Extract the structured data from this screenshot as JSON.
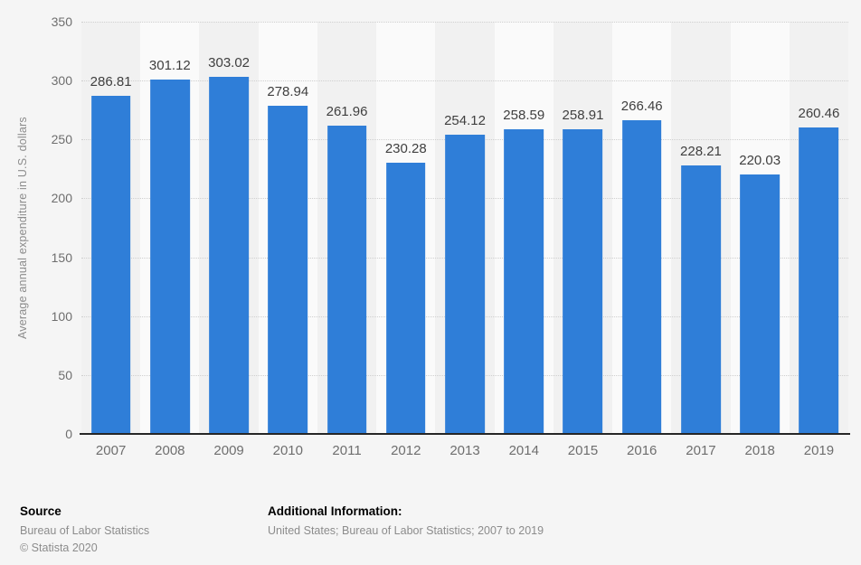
{
  "chart_data": {
    "type": "bar",
    "categories": [
      "2007",
      "2008",
      "2009",
      "2010",
      "2011",
      "2012",
      "2013",
      "2014",
      "2015",
      "2016",
      "2017",
      "2018",
      "2019"
    ],
    "values": [
      286.81,
      301.12,
      303.02,
      278.94,
      261.96,
      230.28,
      254.12,
      258.59,
      258.91,
      266.46,
      228.21,
      220.03,
      260.46
    ],
    "title": "",
    "xlabel": "",
    "ylabel": "Average annual expenditure in U.S. dollars",
    "ylim": [
      0,
      350
    ],
    "ytick_step": 50,
    "grid": "horizontal-dotted",
    "legend": "none",
    "value_labels_shown": true
  },
  "colors": {
    "page_bg": "#f5f5f5",
    "band_even": "#f1f1f1",
    "band_odd": "#fafafa",
    "bar": "#2f7ed8",
    "gridline": "#cfcfcf",
    "axis_line": "#262626",
    "value_label": "#3f3f3f",
    "tick_label": "#6e6e6e",
    "axis_title": "#8c8c8c"
  },
  "footer": {
    "source_heading": "Source",
    "source_name": "Bureau of Labor Statistics",
    "copyright": "© Statista 2020",
    "additional_heading": "Additional Information:",
    "additional_text": "United States; Bureau of Labor Statistics; 2007 to 2019"
  }
}
